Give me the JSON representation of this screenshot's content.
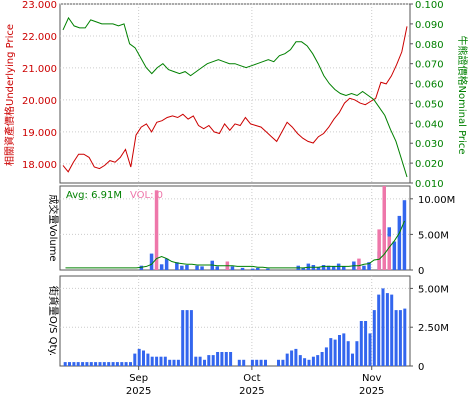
{
  "chart_data": [
    {
      "type": "line",
      "panel": "price",
      "y_left": {
        "label": "相關資產價格Underlying Price",
        "ticks": [
          "23.000",
          "22.000",
          "21.000",
          "20.000",
          "19.000",
          "18.000"
        ],
        "tick_values": [
          23,
          22,
          21,
          20,
          19,
          18
        ],
        "ylim": [
          17.4,
          23.0
        ],
        "color": "#cc0000"
      },
      "y_right": {
        "label": "牛熊證價格Nominal Price",
        "ticks": [
          "0.100",
          "0.090",
          "0.080",
          "0.070",
          "0.060",
          "0.050",
          "0.040",
          "0.030",
          "0.020",
          "0.010"
        ],
        "tick_values": [
          0.1,
          0.09,
          0.08,
          0.07,
          0.06,
          0.05,
          0.04,
          0.03,
          0.02,
          0.01
        ],
        "ylim": [
          0.01,
          0.1
        ],
        "color": "#008000"
      },
      "grid": true,
      "series": [
        {
          "color": "#cc0000",
          "axis": "left",
          "values": [
            17.95,
            17.75,
            18.05,
            18.3,
            18.3,
            18.2,
            17.9,
            17.85,
            17.95,
            18.1,
            18.05,
            18.2,
            18.45,
            17.9,
            18.9,
            19.15,
            19.25,
            19.0,
            19.3,
            19.35,
            19.45,
            19.5,
            19.45,
            19.55,
            19.4,
            19.5,
            19.2,
            19.1,
            19.2,
            19.0,
            18.95,
            19.25,
            19.05,
            19.25,
            19.2,
            19.45,
            19.25,
            19.2,
            19.15,
            19.0,
            18.85,
            18.7,
            19.0,
            19.3,
            19.15,
            18.95,
            18.8,
            18.7,
            18.65,
            18.85,
            18.95,
            19.15,
            19.4,
            19.6,
            19.9,
            20.05,
            20.0,
            19.9,
            19.85,
            19.95,
            20.05,
            20.55,
            20.5,
            20.75,
            21.1,
            21.5,
            22.3
          ]
        },
        {
          "color": "#008000",
          "axis": "right",
          "values": [
            0.087,
            0.093,
            0.089,
            0.088,
            0.088,
            0.092,
            0.091,
            0.09,
            0.09,
            0.09,
            0.089,
            0.09,
            0.08,
            0.078,
            0.073,
            0.068,
            0.065,
            0.068,
            0.07,
            0.067,
            0.066,
            0.065,
            0.066,
            0.064,
            0.066,
            0.068,
            0.07,
            0.071,
            0.072,
            0.071,
            0.07,
            0.07,
            0.069,
            0.068,
            0.069,
            0.07,
            0.071,
            0.072,
            0.071,
            0.074,
            0.075,
            0.077,
            0.081,
            0.081,
            0.079,
            0.075,
            0.07,
            0.064,
            0.06,
            0.057,
            0.055,
            0.054,
            0.055,
            0.054,
            0.056,
            0.054,
            0.052,
            0.048,
            0.044,
            0.037,
            0.031,
            0.022,
            0.013
          ]
        }
      ]
    },
    {
      "type": "bar",
      "panel": "volume",
      "legend": {
        "avg_label": "Avg: 6.91M",
        "vol_label": "VOL: 0"
      },
      "y_left_label": "成交量Volume",
      "y_right": {
        "ticks": [
          "10.00M",
          "5.00M",
          "0"
        ],
        "tick_values": [
          10,
          5,
          0
        ],
        "ylim": [
          0,
          11.8
        ]
      },
      "grid": true,
      "series": [
        {
          "name": "blue-bars",
          "color": "#3366ee",
          "values": [
            0,
            0,
            0,
            0,
            0,
            0,
            0,
            0,
            0,
            0,
            0,
            0,
            0,
            0,
            0,
            0.6,
            0,
            2.3,
            0,
            0.8,
            1.6,
            0,
            1.1,
            0.6,
            0.7,
            0,
            0.6,
            0.5,
            0,
            1.3,
            0.5,
            0,
            0.6,
            0.5,
            0,
            0.3,
            0,
            0.2,
            0.3,
            0,
            0.2,
            0,
            0,
            0,
            0,
            0,
            0.6,
            0.3,
            0.9,
            0.7,
            0.4,
            0.7,
            0.6,
            0.5,
            0.9,
            0.5,
            0,
            1.2,
            0.3,
            0.6,
            1.1,
            0,
            2.6,
            3.2,
            6.0,
            4.0,
            7.6,
            9.8
          ]
        },
        {
          "name": "pink-bars",
          "color": "#ee77aa",
          "values": [
            0,
            0,
            0,
            0,
            0,
            0,
            0,
            0,
            0,
            0,
            0,
            0,
            0,
            0,
            0,
            0,
            0,
            0,
            11.2,
            0,
            0,
            0,
            0,
            0,
            0,
            0,
            0,
            0,
            0,
            0,
            0,
            0,
            1.2,
            0,
            0,
            0,
            0,
            0,
            0,
            0,
            0,
            0,
            0,
            0,
            0,
            0,
            0,
            0,
            0,
            0,
            0,
            0,
            0,
            0,
            0,
            0,
            0,
            0,
            1.6,
            0,
            0,
            0,
            5.7,
            11.8,
            4.7,
            0,
            0,
            0
          ]
        },
        {
          "name": "avg-line",
          "color": "#008000",
          "values": [
            0.3,
            0.3,
            0.3,
            0.3,
            0.3,
            0.3,
            0.3,
            0.3,
            0.3,
            0.3,
            0.3,
            0.3,
            0.3,
            0.3,
            0.3,
            0.4,
            0.5,
            0.8,
            1.6,
            1.9,
            1.6,
            1.2,
            1.0,
            0.9,
            0.8,
            0.8,
            0.7,
            0.7,
            0.7,
            0.7,
            0.6,
            0.6,
            0.6,
            0.6,
            0.5,
            0.5,
            0.5,
            0.5,
            0.4,
            0.4,
            0.3,
            0.3,
            0.3,
            0.3,
            0.3,
            0.3,
            0.3,
            0.3,
            0.4,
            0.4,
            0.4,
            0.5,
            0.5,
            0.5,
            0.5,
            0.5,
            0.5,
            0.6,
            0.6,
            0.8,
            0.9,
            1.4,
            1.5,
            2.2,
            3.2,
            4.1,
            5.2,
            6.9
          ]
        }
      ]
    },
    {
      "type": "bar",
      "panel": "outstanding",
      "y_left_label": "街貨量O/S Qty.",
      "y_right": {
        "ticks": [
          "5.00M",
          "2.50M",
          "0"
        ],
        "tick_values": [
          5,
          2.5,
          0
        ],
        "ylim": [
          0,
          5.8
        ]
      },
      "grid": true,
      "series": [
        {
          "name": "os-qty",
          "color": "#3366ee",
          "values": [
            0.25,
            0.25,
            0.25,
            0.25,
            0.25,
            0.25,
            0.25,
            0.25,
            0.25,
            0.25,
            0.25,
            0.25,
            0.25,
            0.25,
            0.25,
            0.25,
            0.8,
            1.1,
            1.0,
            0.8,
            0.6,
            0.6,
            0.6,
            0.6,
            0.4,
            0.4,
            0.4,
            3.6,
            3.6,
            3.6,
            0.6,
            0.6,
            0.4,
            0.7,
            0.7,
            0.9,
            0.9,
            0.9,
            0.9,
            0.0,
            0.4,
            0.4,
            0.0,
            0.4,
            0.4,
            0.4,
            0.4,
            0.0,
            0.0,
            0.4,
            0.4,
            0.8,
            1.0,
            1.1,
            0.7,
            0.5,
            0.4,
            0.6,
            0.7,
            0.9,
            1.2,
            1.8,
            1.7,
            2.0,
            2.1,
            1.6,
            0.8,
            1.6,
            2.9,
            2.9,
            2.1,
            3.6,
            4.6,
            5.0,
            4.7,
            4.6,
            3.6,
            3.6,
            3.7
          ]
        }
      ]
    }
  ],
  "x_axis": {
    "labels": [
      {
        "month": "Sep",
        "year": "2025",
        "frac": 0.2247
      },
      {
        "month": "Oct",
        "year": "2025",
        "frac": 0.5482
      },
      {
        "month": "Nov",
        "year": "2025",
        "frac": 0.8906
      }
    ]
  }
}
